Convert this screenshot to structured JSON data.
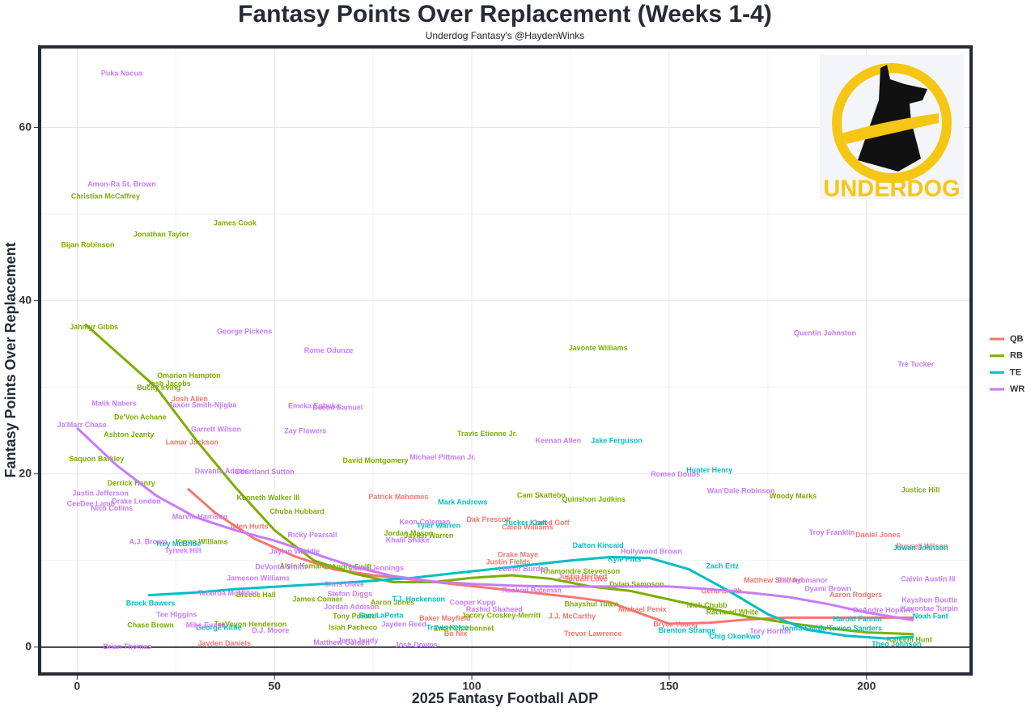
{
  "chart_data": {
    "type": "scatter",
    "title": "Fantasy Points Over Replacement (Weeks 1-4)",
    "subtitle": "Underdog Fantasy's @HaydenWinks",
    "x_label": "2025 Fantasy Football ADP",
    "y_label": "Fantasy Points Over Replacement",
    "logo_text": "UNDERDOG",
    "xlim": [
      -9.5,
      226.5
    ],
    "ylim": [
      -3.1,
      69.3
    ],
    "xticks": [
      0,
      50,
      100,
      150,
      200
    ],
    "yticks": [
      0,
      20,
      40,
      60
    ],
    "grid": true,
    "hline": 0,
    "legend": "right",
    "series": [
      {
        "name": "QB",
        "color": "#f8766d",
        "labels": [
          "Josh Allen",
          "Lamar Jackson",
          "Patrick Mahomes",
          "Dak Prescott",
          "Jared Goff",
          "Caleb Williams",
          "Jalen Hurts",
          "Daniel Jones",
          "Russell Wilson",
          "Drake Maye",
          "Justin Fields",
          "Justin Herbert",
          "Jordan Love",
          "Matthew Stafford",
          "Geno Smith",
          "Aaron Rodgers",
          "Michael Penix",
          "Baker Mayfield",
          "J.J. McCarthy",
          "Bryce Young",
          "Bo Nix",
          "Trevor Lawrence",
          "Jayden Daniels"
        ],
        "x": [
          28.5,
          29.1,
          81.4,
          104.3,
          120.1,
          114.1,
          43.4,
          202.9,
          214.1,
          111.7,
          109.2,
          128.1,
          128.9,
          176.4,
          163.3,
          197.3,
          143.2,
          93.2,
          125.4,
          151.6,
          95.9,
          130.7,
          37.3
        ],
        "values": [
          28.6,
          23.6,
          17.3,
          14.7,
          14.3,
          13.8,
          13.9,
          12.9,
          11.6,
          10.6,
          9.8,
          8.1,
          7.8,
          7.7,
          6.4,
          6.0,
          4.3,
          3.3,
          3.5,
          2.6,
          1.5,
          1.5,
          0.4
        ],
        "trend": {
          "x": [
            28,
            35,
            45,
            55,
            65,
            75,
            85,
            95,
            105,
            115,
            125,
            135,
            142,
            150,
            160,
            170,
            180,
            190,
            200,
            212
          ],
          "values": [
            18.3,
            15.5,
            12.5,
            10.5,
            9,
            8.3,
            7.8,
            7.3,
            6.8,
            6.3,
            5.8,
            5.2,
            4,
            2.7,
            2.8,
            3.2,
            3.4,
            3.4,
            3.4,
            3.4
          ]
        }
      },
      {
        "name": "RB",
        "color": "#7cae00",
        "labels": [
          "Christian McCaffrey",
          "James Cook",
          "Jonathan Taylor",
          "Bijan Robinson",
          "Jahmyr Gibbs",
          "Omarion Hampton",
          "Josh Jacobs",
          "Bucky Irving",
          "De'Von Achane",
          "Ashton Jeanty",
          "Travis Etienne Jr.",
          "Javonte Williams",
          "David Montgomery",
          "Saquon Barkley",
          "Derrick Henry",
          "Justice Hill",
          "Woody Marks",
          "Cam Skattebo",
          "Quinshon Judkins",
          "Kenneth Walker III",
          "Chuba Hubbard",
          "Jordan Mason",
          "Jaylen Warren",
          "Kyren Williams",
          "Alvin Kamara",
          "D'Andre Swift",
          "Rhamondre Stevenson",
          "Dylan Sampson",
          "Breece Hall",
          "James Conner",
          "Aaron Jones",
          "Bhayshul Tuten",
          "Nick Chubb",
          "Rachaad White",
          "Jacory Croskey-Merritt",
          "Tony Pollard",
          "TreVeyon Henderson",
          "Chase Brown",
          "Isiah Pacheco",
          "Zach Charbonnet",
          "Kareem Hunt"
        ],
        "x": [
          7.2,
          40.0,
          21.3,
          2.7,
          4.3,
          28.3,
          23.2,
          20.7,
          16.0,
          13.1,
          103.9,
          132.0,
          75.6,
          4.9,
          13.7,
          213.7,
          181.4,
          117.6,
          130.9,
          48.4,
          55.7,
          84.0,
          89.1,
          31.6,
          57.2,
          68.6,
          127.5,
          141.8,
          45.3,
          60.9,
          79.9,
          130.3,
          159.6,
          166.0,
          107.4,
          70.3,
          43.9,
          18.6,
          69.9,
          98.0,
          210.9
        ],
        "values": [
          52.0,
          48.9,
          47.6,
          46.4,
          36.9,
          31.3,
          30.4,
          29.9,
          26.5,
          24.5,
          24.6,
          34.5,
          21.5,
          21.7,
          18.9,
          18.1,
          17.4,
          17.5,
          17.0,
          17.2,
          15.6,
          13.1,
          12.8,
          12.1,
          9.3,
          9.2,
          8.7,
          7.2,
          6.0,
          5.5,
          5.1,
          4.9,
          4.8,
          4.0,
          3.6,
          3.5,
          2.6,
          2.5,
          2.2,
          2.1,
          0.8
        ],
        "trend": {
          "x": [
            2,
            20,
            30,
            40,
            50,
            60,
            70,
            80,
            90,
            100,
            110,
            120,
            130,
            140,
            150,
            160,
            170,
            180,
            190,
            200,
            212
          ],
          "values": [
            37.3,
            30,
            24,
            18.5,
            13.5,
            10,
            8.5,
            7.5,
            7.5,
            8,
            8.3,
            7.9,
            7,
            6.5,
            5.5,
            4.5,
            3.5,
            2.8,
            2.2,
            1.7,
            1.5
          ]
        }
      },
      {
        "name": "TE",
        "color": "#00bfc4",
        "labels": [
          "Hunter Henry",
          "Jake Ferguson",
          "Mark Andrews",
          "Tyler Warren",
          "Trey McBride",
          "Dalton Kincaid",
          "Kyle Pitts",
          "Sam LaPorta",
          "Zach Ertz",
          "Tucker Kraft",
          "Brock Bowers",
          "T.J. Hockenson",
          "George Kittle",
          "Travis Kelce",
          "Brenton Strange",
          "Chig Okonkwo",
          "Harold Fannin",
          "Noah Fant",
          "Jonnu Smith",
          "Juwan Johnson",
          "Theo Johnson",
          "Ja'Tavion Sanders"
        ],
        "x": [
          160.2,
          136.7,
          97.7,
          91.6,
          25.6,
          132.0,
          138.7,
          77.0,
          163.5,
          113.7,
          18.6,
          86.5,
          35.9,
          93.9,
          154.5,
          166.6,
          197.7,
          216.2,
          183.8,
          213.7,
          207.6,
          195.9
        ],
        "values": [
          20.4,
          23.8,
          16.7,
          14.0,
          11.9,
          11.7,
          10.1,
          3.6,
          9.3,
          14.3,
          5.0,
          5.5,
          2.2,
          2.2,
          1.9,
          1.2,
          3.2,
          3.5,
          2.1,
          11.4,
          0.3,
          2.1
        ],
        "trend": {
          "x": [
            18,
            30,
            40,
            55,
            70,
            85,
            95,
            105,
            115,
            125,
            135,
            145,
            155,
            165,
            175,
            185,
            195,
            205,
            212
          ],
          "values": [
            6,
            6.3,
            6.7,
            7.1,
            7.5,
            8,
            8.5,
            9,
            9.5,
            10,
            10.4,
            10.3,
            9,
            6.5,
            3.8,
            2,
            1.3,
            1,
            1.2
          ]
        }
      },
      {
        "name": "WR",
        "color": "#c77cff",
        "labels": [
          "Puka Nacua",
          "Amon-Ra St. Brown",
          "George Pickens",
          "Rome Odunze",
          "Malik Nabers",
          "Emeka Egbuka",
          "Deebo Samuel",
          "Jaxon Smith-Njigba",
          "Garrett Wilson",
          "Ja'Marr Chase",
          "Zay Flowers",
          "Keenan Allen",
          "Michael Pittman Jr.",
          "Davante Adams",
          "Courtland Sutton",
          "Quentin Johnston",
          "Tre Tucker",
          "Romeo Doubs",
          "Wan'Dale Robinson",
          "Justin Jefferson",
          "Drake London",
          "CeeDee Lamb",
          "Nico Collins",
          "Marvin Harrison",
          "Keon Coleman",
          "Ricky Pearsall",
          "Khalil Shakir",
          "Troy Franklin",
          "A.J. Brown",
          "Tyreek Hill",
          "Jaylen Waddle",
          "Hollywood Brown",
          "DeVonta Smith",
          "Jameson Williams",
          "Chris Olave",
          "Tetairoa McMillan",
          "Calvin Austin III",
          "Dyami Brown",
          "Elic Ayomanor",
          "Stefon Diggs",
          "Jordan Addison",
          "Cooper Kupp",
          "Rashid Shaheed",
          "Rashod Bateman",
          "Luther Burden",
          "Jauan Jennings",
          "Tee Higgins",
          "Jayden Reed",
          "Mike Evans",
          "D.J. Moore",
          "Kayshon Boutte",
          "Kavontae Turpin",
          "DeAndre Hopkins",
          "Tory Horton",
          "Matthew Golden",
          "Jerry Jeudy",
          "Josh Downs",
          "Brian Thomas"
        ],
        "x": [
          11.3,
          11.3,
          42.4,
          63.7,
          9.4,
          60.0,
          66.0,
          31.8,
          35.2,
          1.2,
          57.8,
          121.9,
          92.6,
          36.7,
          47.5,
          189.5,
          212.5,
          151.6,
          168.2,
          5.9,
          15.0,
          3.5,
          8.8,
          31.1,
          88.1,
          59.6,
          83.8,
          191.2,
          18.0,
          26.8,
          55.1,
          145.5,
          51.6,
          45.9,
          67.6,
          38.3,
          215.6,
          190.2,
          183.8,
          69.1,
          69.5,
          100.2,
          105.7,
          115.2,
          113.1,
          75.8,
          25.2,
          82.8,
          32.6,
          49.0,
          216.0,
          216.0,
          204.3,
          175.6,
          67.0,
          71.1,
          85.9,
          12.7
        ],
        "values": [
          66.2,
          53.4,
          36.4,
          34.2,
          28.1,
          27.8,
          27.6,
          27.9,
          25.1,
          25.6,
          24.9,
          23.8,
          21.9,
          20.3,
          20.2,
          36.2,
          32.6,
          19.9,
          18.0,
          17.7,
          16.8,
          16.5,
          16.0,
          15.0,
          14.4,
          12.9,
          12.3,
          13.2,
          12.1,
          11.1,
          11.0,
          11.0,
          9.2,
          7.9,
          7.2,
          6.2,
          7.8,
          6.7,
          7.7,
          6.1,
          4.6,
          5.1,
          4.3,
          6.5,
          9.0,
          9.1,
          3.7,
          2.6,
          2.5,
          1.9,
          5.4,
          4.4,
          4.2,
          1.8,
          0.5,
          0.7,
          0.2,
          0
        ],
        "trend": {
          "x": [
            0,
            10,
            20,
            30,
            40,
            50,
            60,
            70,
            80,
            90,
            100,
            110,
            120,
            130,
            140,
            150,
            160,
            170,
            180,
            190,
            200,
            212
          ],
          "values": [
            25.3,
            21,
            17.5,
            15,
            13.5,
            12.3,
            10.8,
            9.3,
            8.2,
            7.6,
            7.3,
            7.1,
            7,
            7,
            7,
            7,
            6.7,
            6.3,
            5.8,
            5,
            4,
            3.1
          ]
        }
      }
    ]
  }
}
